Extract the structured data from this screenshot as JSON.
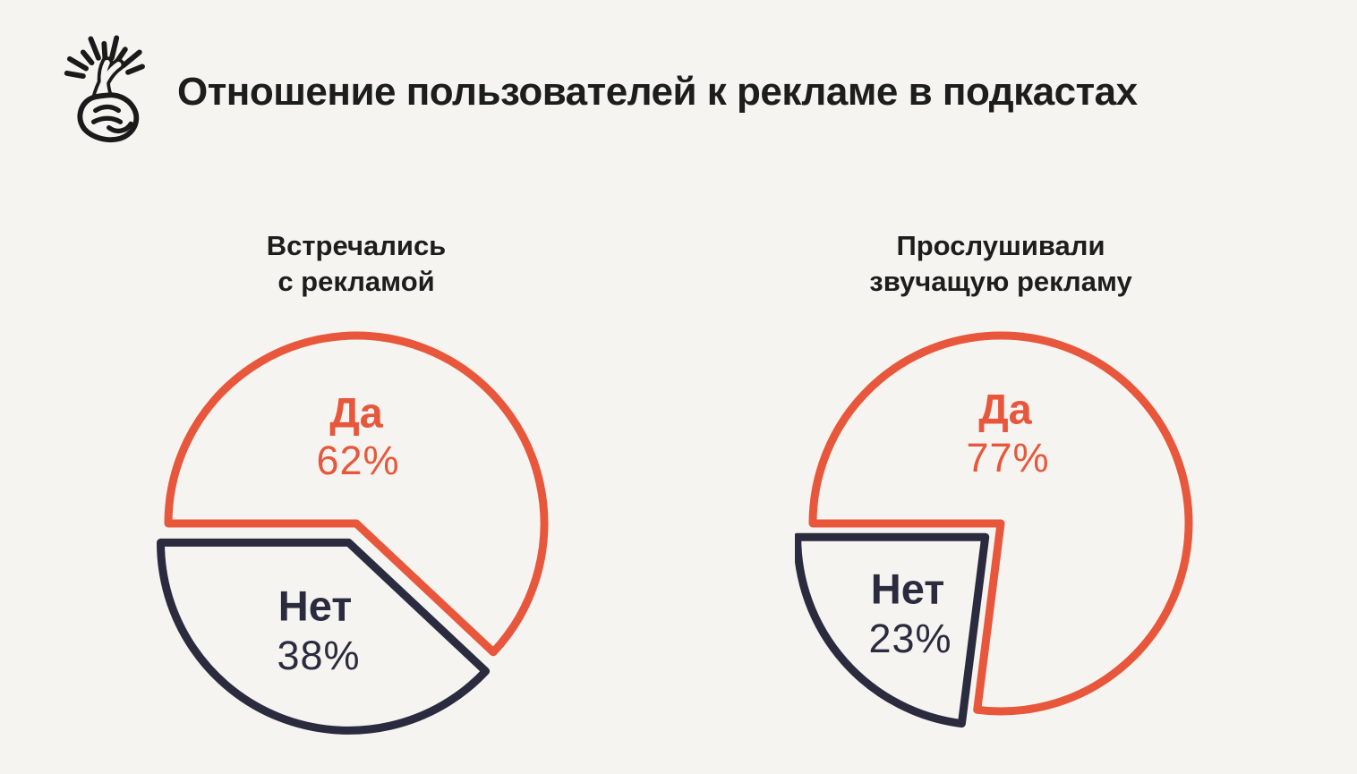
{
  "page": {
    "background_color": "#f6f4f0"
  },
  "header": {
    "title": "Отношение пользователей к рекламе в подкастах",
    "icon": "fingers-crossed-icon",
    "title_color": "#1d1d1b"
  },
  "chart_data": [
    {
      "type": "pie",
      "title": "Встречались с рекламой",
      "title_lines": [
        "Встречались",
        "с рекламой"
      ],
      "style": "outline",
      "start_angle_deg": 180,
      "direction": "clockwise",
      "exploded_index": 1,
      "legend_position": "inside",
      "slices": [
        {
          "label": "Да",
          "value_pct": 62,
          "value_label": "62%",
          "color": "#e8573b"
        },
        {
          "label": "Нет",
          "value_pct": 38,
          "value_label": "38%",
          "color": "#2a2b3e"
        }
      ]
    },
    {
      "type": "pie",
      "title": "Прослушивали звучащую рекламу",
      "title_lines": [
        "Прослушивали",
        "звучащую рекламу"
      ],
      "style": "outline",
      "start_angle_deg": 180,
      "direction": "clockwise",
      "exploded_index": 1,
      "legend_position": "inside",
      "slices": [
        {
          "label": "Да",
          "value_pct": 77,
          "value_label": "77%",
          "color": "#e8573b"
        },
        {
          "label": "Нет",
          "value_pct": 23,
          "value_label": "23%",
          "color": "#2a2b3e"
        }
      ]
    }
  ]
}
